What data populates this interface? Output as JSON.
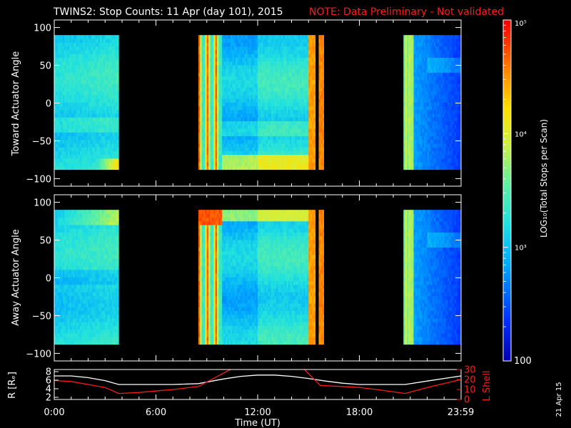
{
  "title": {
    "main": "TWINS2: Stop Counts: 11 Apr (day 101), 2015",
    "note": "NOTE: Data Preliminary - Not validated"
  },
  "side_stamp": "21 Apr 15",
  "colors": {
    "background": "#000000",
    "axes": "#ffffff",
    "note": "#ff1a1a",
    "r_line": "#ffffff",
    "l_shell_line": "#ff1a1a"
  },
  "chart_data": [
    {
      "type": "heatmap",
      "name": "toward",
      "ylabel": "Toward Actuator Angle",
      "xlim": [
        0,
        24
      ],
      "ylim": [
        -110,
        110
      ],
      "yticks": [
        -100,
        -50,
        0,
        50,
        100
      ],
      "angle_range": [
        -88,
        90
      ],
      "data_intervals_hours": [
        [
          0,
          3.8
        ],
        [
          8.5,
          15.4
        ],
        [
          15.6,
          15.9
        ],
        [
          20.6,
          24
        ]
      ],
      "colorscale": "log",
      "grid": false
    },
    {
      "type": "heatmap",
      "name": "away",
      "ylabel": "Away Actuator Angle",
      "xlim": [
        0,
        24
      ],
      "ylim": [
        -110,
        110
      ],
      "yticks": [
        -100,
        -50,
        0,
        50,
        100
      ],
      "angle_range": [
        -88,
        90
      ],
      "data_intervals_hours": [
        [
          0,
          3.8
        ],
        [
          8.5,
          15.4
        ],
        [
          15.6,
          15.9
        ],
        [
          20.6,
          24
        ]
      ],
      "colorscale": "log",
      "grid": false
    },
    {
      "type": "line",
      "name": "orbit",
      "xlabel": "Time (UT)",
      "xticks": [
        "0:00",
        "6:00",
        "12:00",
        "18:00",
        "23:59"
      ],
      "xtick_hours": [
        0,
        6,
        12,
        18,
        23.98
      ],
      "xlim": [
        0,
        24
      ],
      "ylabel_left": "R [Rₑ]",
      "ylim_left": [
        1.5,
        8.5
      ],
      "yticks_left": [
        2,
        4,
        6,
        8
      ],
      "ylabel_right": "L Shell",
      "ylim_right": [
        0,
        30
      ],
      "yticks_right": [
        0,
        10,
        20,
        30
      ],
      "series": [
        {
          "name": "R",
          "color": "#ffffff",
          "x": [
            0,
            1,
            2,
            3,
            3.8,
            5,
            7,
            8.5,
            10,
            11,
            12,
            13,
            14,
            15,
            16,
            17,
            18,
            19,
            20.7,
            22,
            24
          ],
          "y": [
            7.0,
            7.0,
            6.6,
            5.9,
            5.0,
            5.0,
            5.0,
            5.2,
            6.3,
            6.9,
            7.2,
            7.2,
            6.9,
            6.4,
            5.8,
            5.3,
            5.0,
            5.0,
            5.0,
            5.8,
            7.0
          ]
        },
        {
          "name": "L Shell",
          "color": "#ff1a1a",
          "x": [
            0,
            1,
            2,
            3,
            3.8,
            5,
            7,
            8.5,
            9.5,
            10.5,
            14.7,
            15.7,
            17,
            18,
            19,
            20.7,
            22,
            24
          ],
          "y": [
            19,
            18,
            15,
            12,
            6,
            7,
            10,
            13,
            22,
            31,
            31,
            14,
            13,
            12,
            10,
            6,
            12,
            20
          ]
        }
      ]
    }
  ],
  "colorbar": {
    "label": "LOG₁₀(Total Stops per Scan)",
    "scale": "log",
    "range": [
      100,
      100000
    ],
    "tick_labels": [
      "10⁵",
      "10⁴",
      "10³",
      "100"
    ],
    "tick_values": [
      100000,
      10000,
      1000,
      100
    ]
  }
}
